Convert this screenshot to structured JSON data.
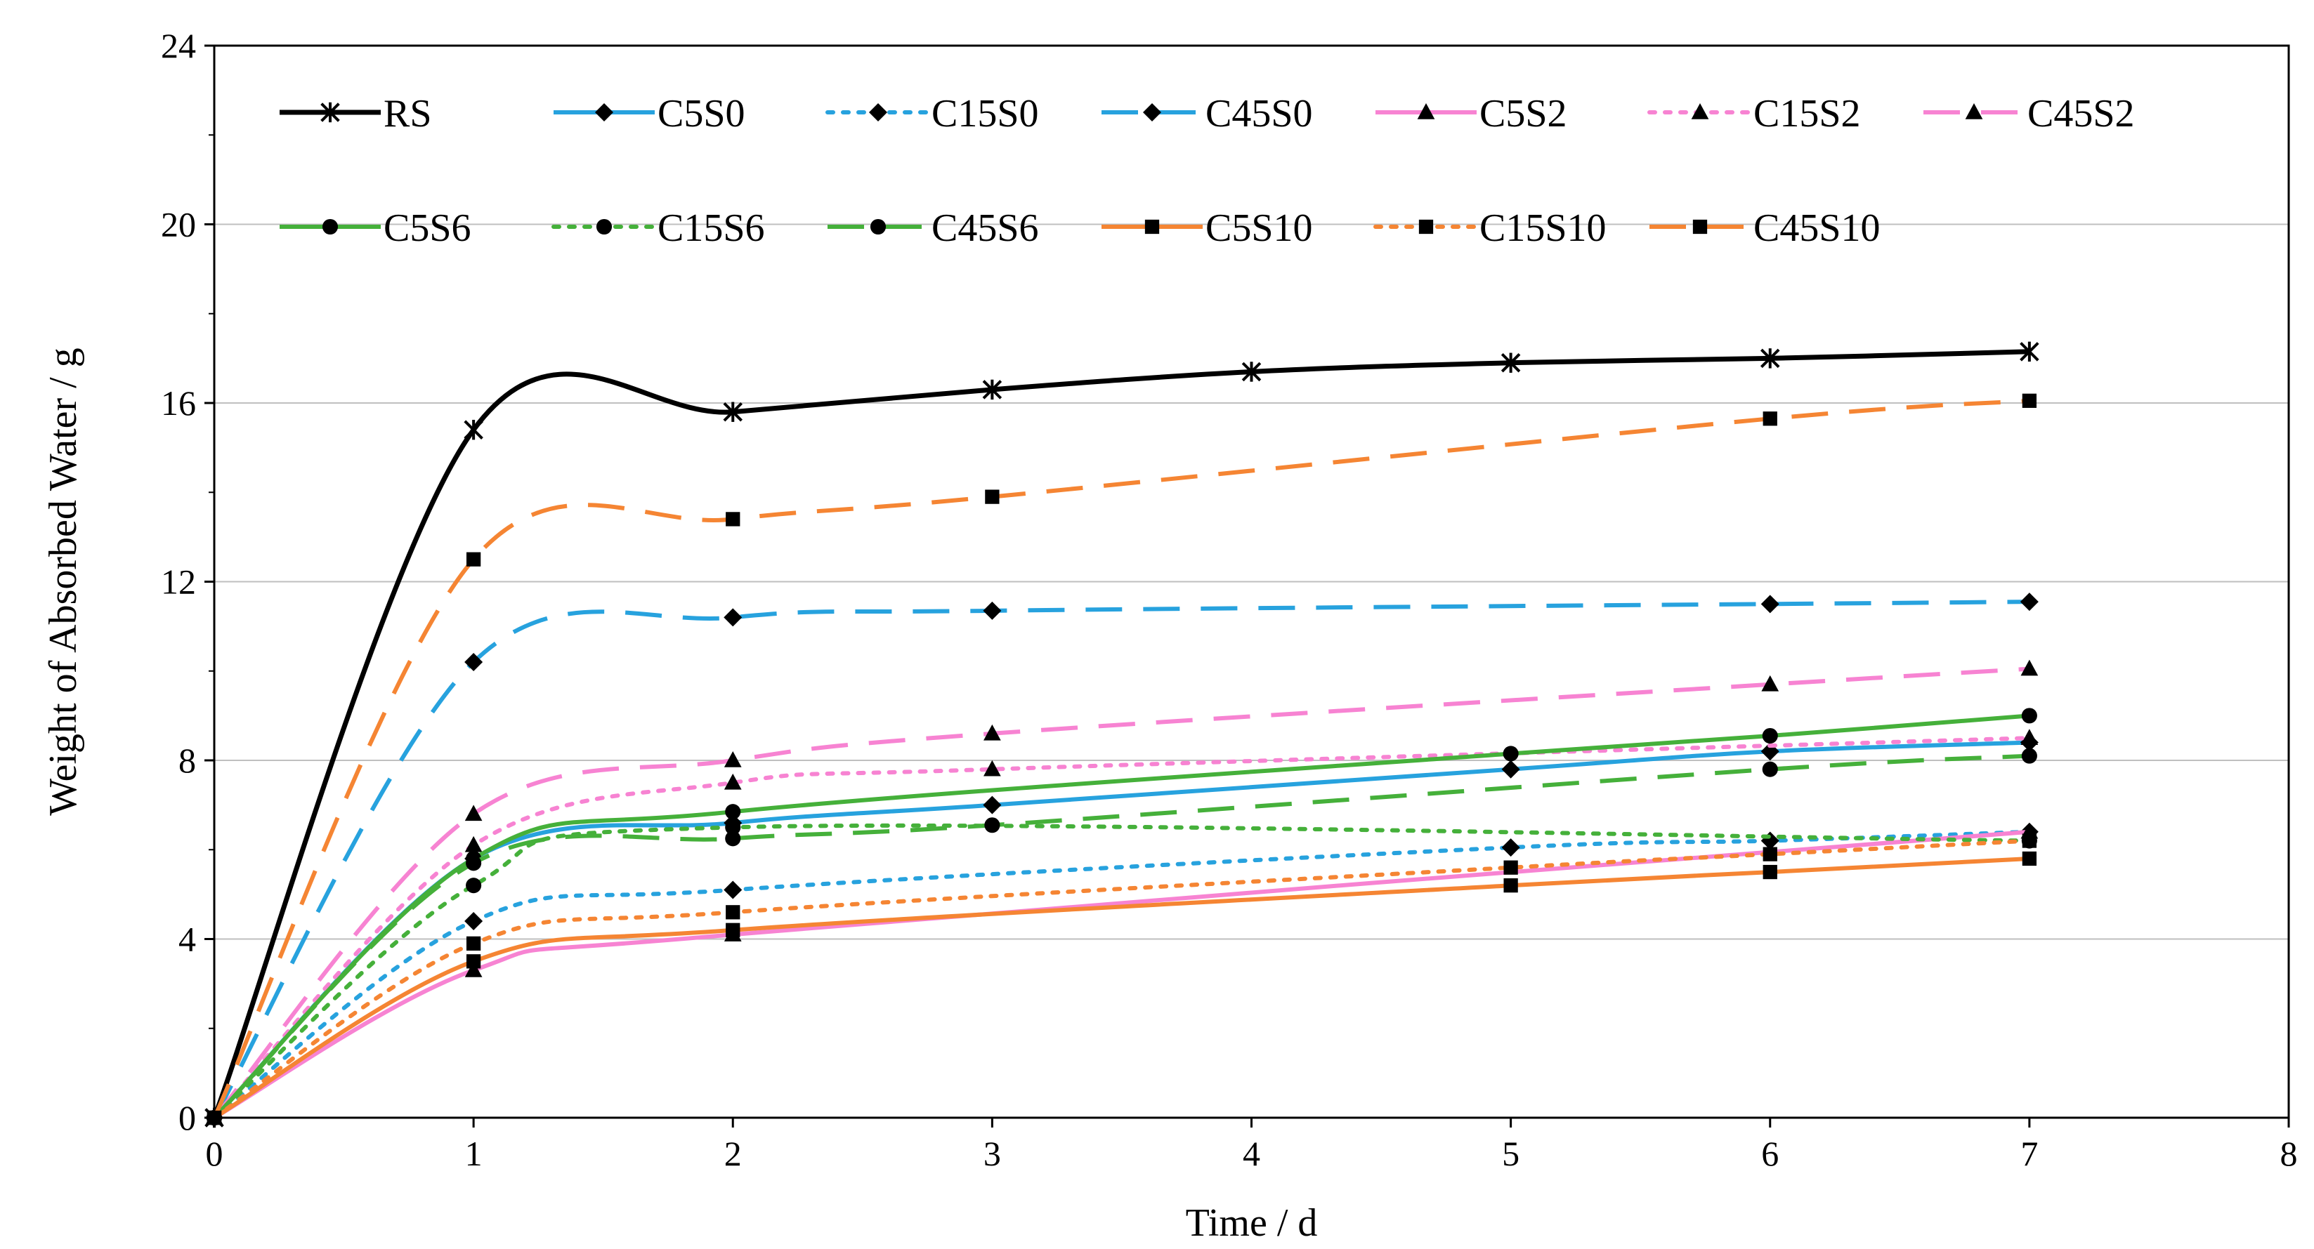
{
  "chart_data": {
    "type": "line",
    "title": "",
    "xlabel": "Time / d",
    "ylabel": "Weight of Absorbed Water / g",
    "xlim": [
      0,
      8
    ],
    "ylim": [
      0,
      24
    ],
    "xticks": [
      0,
      1,
      2,
      3,
      4,
      5,
      6,
      7,
      8
    ],
    "yticks": [
      0,
      4,
      8,
      12,
      16,
      20,
      24
    ],
    "grid": "horizontal",
    "legend_position": "top",
    "series": [
      {
        "name": "RS",
        "color": "#000000",
        "dash": "solid",
        "marker": "star",
        "x": [
          0,
          1,
          2,
          3,
          4,
          5,
          6,
          7
        ],
        "y": [
          0,
          15.4,
          15.8,
          16.3,
          16.7,
          16.9,
          17.0,
          17.15
        ]
      },
      {
        "name": "C5S0",
        "color": "#27A2DE",
        "dash": "solid",
        "marker": "diamond",
        "x": [
          0,
          1,
          2,
          3,
          5,
          6,
          7
        ],
        "y": [
          0,
          5.8,
          6.6,
          7.0,
          7.8,
          8.2,
          8.4
        ]
      },
      {
        "name": "C15S0",
        "color": "#27A2DE",
        "dash": "dot",
        "marker": "diamond",
        "x": [
          0,
          1,
          2,
          5,
          6,
          7
        ],
        "y": [
          0,
          4.4,
          5.1,
          6.05,
          6.2,
          6.4
        ]
      },
      {
        "name": "C45S0",
        "color": "#27A2DE",
        "dash": "dash",
        "marker": "diamond",
        "x": [
          0,
          1,
          2,
          3,
          6,
          7
        ],
        "y": [
          0,
          10.2,
          11.2,
          11.35,
          11.5,
          11.55
        ]
      },
      {
        "name": "C5S2",
        "color": "#F783D2",
        "dash": "solid",
        "marker": "triangle",
        "x": [
          0,
          1,
          2,
          7
        ],
        "y": [
          0,
          3.3,
          4.1,
          6.4
        ]
      },
      {
        "name": "C15S2",
        "color": "#F783D2",
        "dash": "dot",
        "marker": "triangle",
        "x": [
          0,
          1,
          2,
          3,
          7
        ],
        "y": [
          0,
          6.1,
          7.5,
          7.8,
          8.5
        ]
      },
      {
        "name": "C45S2",
        "color": "#F783D2",
        "dash": "dash",
        "marker": "triangle",
        "x": [
          0,
          1,
          2,
          3,
          6,
          7
        ],
        "y": [
          0,
          6.8,
          8.0,
          8.6,
          9.7,
          10.05
        ]
      },
      {
        "name": "C5S6",
        "color": "#45B03A",
        "dash": "solid",
        "marker": "circle",
        "x": [
          0,
          1,
          2,
          5,
          6,
          7
        ],
        "y": [
          0,
          5.8,
          6.85,
          8.15,
          8.55,
          9.0
        ]
      },
      {
        "name": "C15S6",
        "color": "#45B03A",
        "dash": "dot",
        "marker": "circle",
        "x": [
          0,
          1,
          2,
          7
        ],
        "y": [
          0,
          5.2,
          6.5,
          6.2
        ]
      },
      {
        "name": "C45S6",
        "color": "#45B03A",
        "dash": "dash",
        "marker": "circle",
        "x": [
          0,
          1,
          2,
          3,
          6,
          7
        ],
        "y": [
          0,
          5.7,
          6.25,
          6.55,
          7.8,
          8.1
        ]
      },
      {
        "name": "C5S10",
        "color": "#F58533",
        "dash": "solid",
        "marker": "square",
        "x": [
          0,
          1,
          2,
          5,
          6,
          7
        ],
        "y": [
          0,
          3.5,
          4.2,
          5.2,
          5.5,
          5.8
        ]
      },
      {
        "name": "C15S10",
        "color": "#F58533",
        "dash": "dot",
        "marker": "square",
        "x": [
          0,
          1,
          2,
          5,
          6,
          7
        ],
        "y": [
          0,
          3.9,
          4.6,
          5.6,
          5.9,
          6.2
        ]
      },
      {
        "name": "C45S10",
        "color": "#F58533",
        "dash": "dash",
        "marker": "square",
        "x": [
          0,
          1,
          2,
          3,
          6,
          7
        ],
        "y": [
          0,
          12.5,
          13.4,
          13.9,
          15.65,
          16.05
        ]
      }
    ]
  }
}
